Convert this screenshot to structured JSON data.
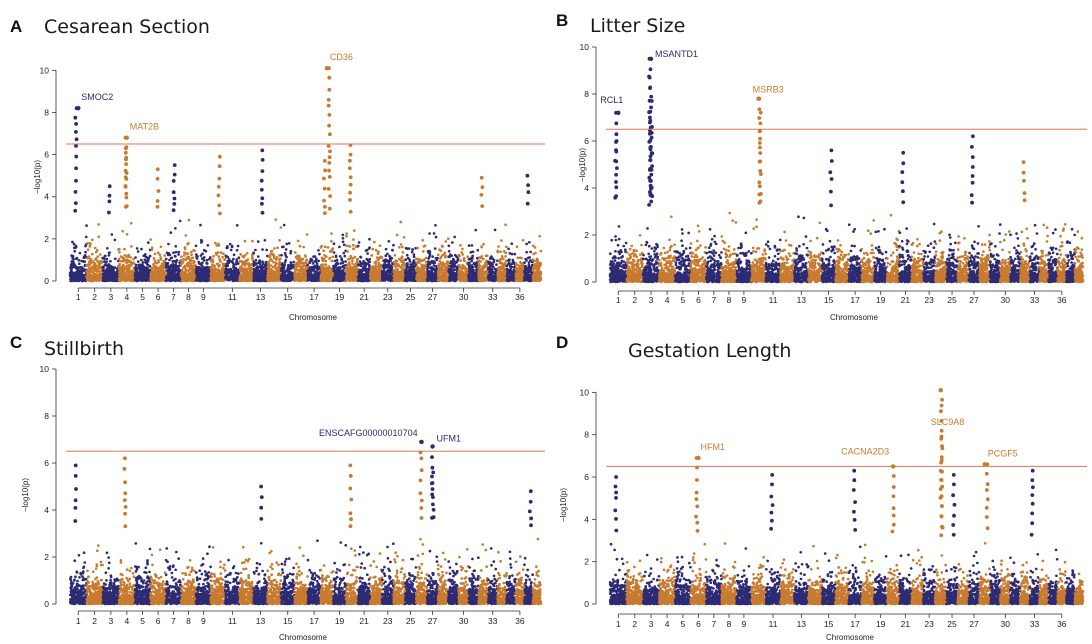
{
  "figure": {
    "colors": {
      "odd_chromosome": "#2b2a73",
      "even_chromosome": "#c87a2e",
      "threshold_line": "#e8735a",
      "axis": "#333333"
    },
    "chromosome_count": 38
  },
  "chart_data": [
    {
      "panel": "A",
      "type": "scatter",
      "title": "Cesarean Section",
      "xlabel": "Chromosome",
      "ylabel": "−log10(p)",
      "y_ticks": [
        "0",
        "2",
        "4",
        "6",
        "8",
        "10"
      ],
      "ylim": [
        0,
        10.3
      ],
      "x_tick_labels": [
        "1",
        "2",
        "3",
        "4",
        "5",
        "6",
        "7",
        "8",
        "9",
        "11",
        "13",
        "15",
        "17",
        "19",
        "21",
        "23",
        "25",
        "27",
        "30",
        "33",
        "36"
      ],
      "x_tick_chromosomes": [
        1,
        2,
        3,
        4,
        5,
        6,
        7,
        8,
        9,
        11,
        13,
        15,
        17,
        19,
        21,
        23,
        25,
        27,
        30,
        33,
        36
      ],
      "significance_threshold": 6.5,
      "annotations": [
        {
          "label": "SMOC2",
          "chromosome": 1,
          "y": 8.2,
          "color": "odd"
        },
        {
          "label": "MAT2B",
          "chromosome": 4,
          "y": 6.8,
          "color": "even"
        },
        {
          "label": "CD36",
          "chromosome": 18,
          "y": 10.1,
          "color": "even"
        }
      ],
      "peaks": [
        {
          "chromosome": 1,
          "y": 8.2
        },
        {
          "chromosome": 3,
          "y": 4.5
        },
        {
          "chromosome": 4,
          "y": 6.8
        },
        {
          "chromosome": 4,
          "y": 6.3
        },
        {
          "chromosome": 6,
          "y": 5.3
        },
        {
          "chromosome": 7,
          "y": 5.5
        },
        {
          "chromosome": 10,
          "y": 5.9
        },
        {
          "chromosome": 13,
          "y": 6.2
        },
        {
          "chromosome": 18,
          "y": 10.1
        },
        {
          "chromosome": 18,
          "y": 5.7
        },
        {
          "chromosome": 20,
          "y": 6.45
        },
        {
          "chromosome": 32,
          "y": 4.9
        },
        {
          "chromosome": 37,
          "y": 5.0
        }
      ]
    },
    {
      "panel": "B",
      "type": "scatter",
      "title": "Litter Size",
      "xlabel": "Chromosome",
      "ylabel": "−log10(p)",
      "y_ticks": [
        "0",
        "2",
        "4",
        "6",
        "8",
        "10"
      ],
      "ylim": [
        0,
        10
      ],
      "x_tick_labels": [
        "1",
        "2",
        "3",
        "4",
        "5",
        "6",
        "7",
        "8",
        "9",
        "11",
        "13",
        "15",
        "17",
        "19",
        "21",
        "23",
        "25",
        "27",
        "30",
        "33",
        "36"
      ],
      "x_tick_chromosomes": [
        1,
        2,
        3,
        4,
        5,
        6,
        7,
        8,
        9,
        11,
        13,
        15,
        17,
        19,
        21,
        23,
        25,
        27,
        30,
        33,
        36
      ],
      "significance_threshold": 6.5,
      "annotations": [
        {
          "label": "RCL1",
          "chromosome": 1,
          "y": 7.2,
          "color": "odd"
        },
        {
          "label": "MSANTD1",
          "chromosome": 3,
          "y": 9.5,
          "color": "odd"
        },
        {
          "label": "MSRB3",
          "chromosome": 10,
          "y": 7.8,
          "color": "even"
        }
      ],
      "peaks": [
        {
          "chromosome": 1,
          "y": 7.2
        },
        {
          "chromosome": 1,
          "y": 6.0
        },
        {
          "chromosome": 3,
          "y": 9.5
        },
        {
          "chromosome": 3,
          "y": 8.7
        },
        {
          "chromosome": 3,
          "y": 7.7
        },
        {
          "chromosome": 3,
          "y": 6.6
        },
        {
          "chromosome": 10,
          "y": 7.8
        },
        {
          "chromosome": 10,
          "y": 7.2
        },
        {
          "chromosome": 15,
          "y": 5.6
        },
        {
          "chromosome": 21,
          "y": 5.5
        },
        {
          "chromosome": 27,
          "y": 6.2
        },
        {
          "chromosome": 32,
          "y": 5.1
        }
      ]
    },
    {
      "panel": "C",
      "type": "scatter",
      "title": "Stillbirth",
      "xlabel": "Chromosome",
      "ylabel": "−log10(p)",
      "y_ticks": [
        "0",
        "2",
        "4",
        "6",
        "8",
        "10"
      ],
      "ylim": [
        0,
        10
      ],
      "x_tick_labels": [
        "1",
        "2",
        "3",
        "4",
        "5",
        "6",
        "7",
        "8",
        "9",
        "11",
        "13",
        "15",
        "17",
        "19",
        "21",
        "23",
        "25",
        "27",
        "30",
        "33",
        "36"
      ],
      "x_tick_chromosomes": [
        1,
        2,
        3,
        4,
        5,
        6,
        7,
        8,
        9,
        11,
        13,
        15,
        17,
        19,
        21,
        23,
        25,
        27,
        30,
        33,
        36
      ],
      "significance_threshold": 6.5,
      "annotations": [
        {
          "label": "ENSCAFG00000010704",
          "chromosome": 26,
          "y": 6.9,
          "color": "odd"
        },
        {
          "label": "UFM1",
          "chromosome": 27,
          "y": 6.7,
          "color": "odd"
        }
      ],
      "peaks": [
        {
          "chromosome": 1,
          "y": 5.9
        },
        {
          "chromosome": 4,
          "y": 6.2
        },
        {
          "chromosome": 20,
          "y": 5.9
        },
        {
          "chromosome": 26,
          "y": 6.9
        },
        {
          "chromosome": 27,
          "y": 6.7
        },
        {
          "chromosome": 27,
          "y": 5.6
        },
        {
          "chromosome": 13,
          "y": 5.0
        },
        {
          "chromosome": 37,
          "y": 4.8
        }
      ]
    },
    {
      "panel": "D",
      "type": "scatter",
      "title": "Gestation Length",
      "xlabel": "Chromosome",
      "ylabel": "−log10(p)",
      "y_ticks": [
        "0",
        "2",
        "4",
        "6",
        "8",
        "10"
      ],
      "ylim": [
        0,
        10.3
      ],
      "x_tick_labels": [
        "1",
        "2",
        "3",
        "4",
        "5",
        "6",
        "7",
        "8",
        "9",
        "11",
        "13",
        "15",
        "17",
        "19",
        "21",
        "23",
        "25",
        "27",
        "30",
        "33",
        "36"
      ],
      "x_tick_chromosomes": [
        1,
        2,
        3,
        4,
        5,
        6,
        7,
        8,
        9,
        11,
        13,
        15,
        17,
        19,
        21,
        23,
        25,
        27,
        30,
        33,
        36
      ],
      "significance_threshold": 6.5,
      "annotations": [
        {
          "label": "HFM1",
          "chromosome": 6,
          "y": 6.9,
          "color": "even"
        },
        {
          "label": "CACNA2D3",
          "chromosome": 20,
          "y": 6.5,
          "color": "even"
        },
        {
          "label": "SLC9A8",
          "chromosome": 24,
          "y": 10.1,
          "color": "even"
        },
        {
          "label": "PCGF5",
          "chromosome": 28,
          "y": 6.6,
          "color": "even"
        }
      ],
      "peaks": [
        {
          "chromosome": 1,
          "y": 6.0
        },
        {
          "chromosome": 6,
          "y": 6.9
        },
        {
          "chromosome": 11,
          "y": 6.1
        },
        {
          "chromosome": 17,
          "y": 6.3
        },
        {
          "chromosome": 20,
          "y": 6.5
        },
        {
          "chromosome": 24,
          "y": 10.1
        },
        {
          "chromosome": 24,
          "y": 7.8
        },
        {
          "chromosome": 25,
          "y": 6.1
        },
        {
          "chromosome": 28,
          "y": 6.6
        },
        {
          "chromosome": 33,
          "y": 6.3
        }
      ]
    }
  ]
}
